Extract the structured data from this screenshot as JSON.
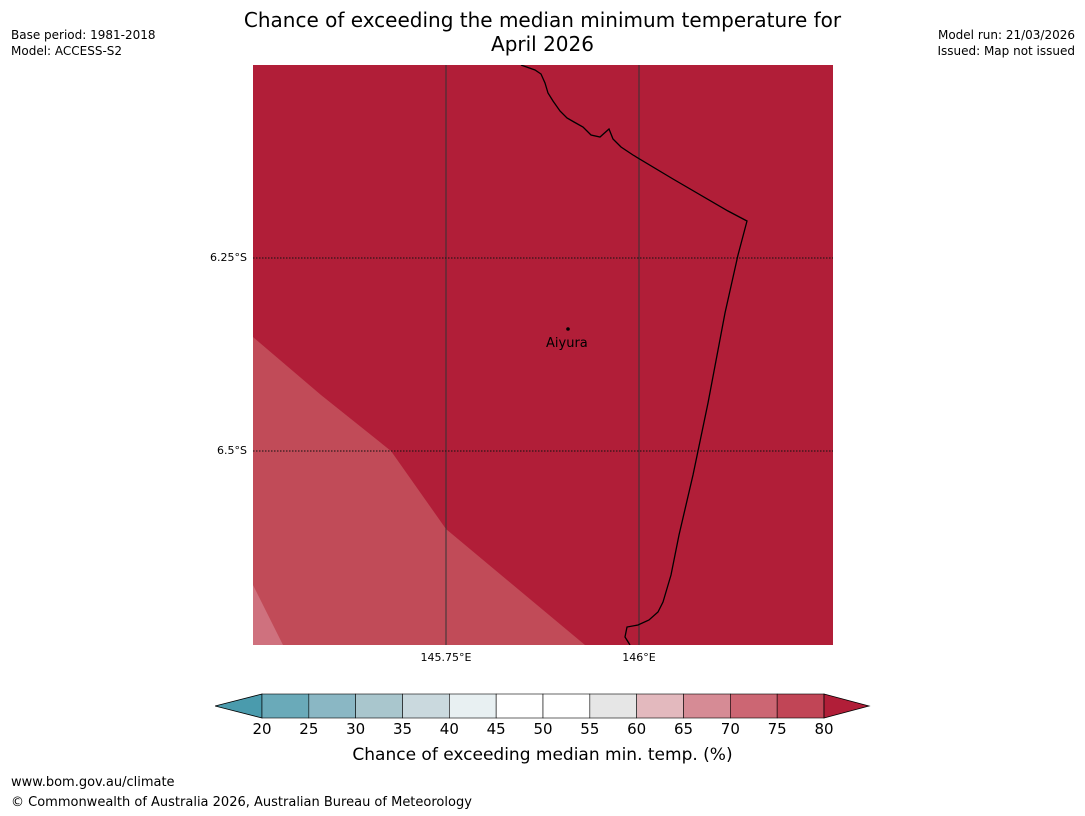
{
  "title_line1": "Chance of exceeding the median minimum temperature for",
  "title_line2": "April 2026",
  "meta_left": {
    "base_period": "Base period: 1981-2018",
    "model": "Model: ACCESS-S2"
  },
  "meta_right": {
    "model_run": "Model run: 21/03/2026",
    "issued": "Issued: Map not issued"
  },
  "map": {
    "lat_labels": [
      "6.25°S",
      "6.5°S"
    ],
    "lon_labels": [
      "145.75°E",
      "146°E"
    ],
    "place": "Aiyura",
    "colors": {
      "dominant": "#b11e38",
      "band_70_75": "#c14b58",
      "band_65_70": "#cf717e",
      "border": "#000000"
    }
  },
  "colorbar": {
    "ticks": [
      "20",
      "25",
      "30",
      "35",
      "40",
      "45",
      "50",
      "55",
      "60",
      "65",
      "70",
      "75",
      "80"
    ],
    "colors": [
      "#4a9bad",
      "#6aaab9",
      "#8ab7c4",
      "#a9c6cd",
      "#cad9de",
      "#e8f0f2",
      "#ffffff",
      "#ffffff",
      "#e6e6e6",
      "#e3b9be",
      "#d68b95",
      "#cc6673",
      "#c14556",
      "#b11e38"
    ],
    "label": "Chance of exceeding median min. temp. (%)"
  },
  "footer": {
    "url": "www.bom.gov.au/climate",
    "copyright": "© Commonwealth of Australia 2026, Australian Bureau of Meteorology"
  }
}
